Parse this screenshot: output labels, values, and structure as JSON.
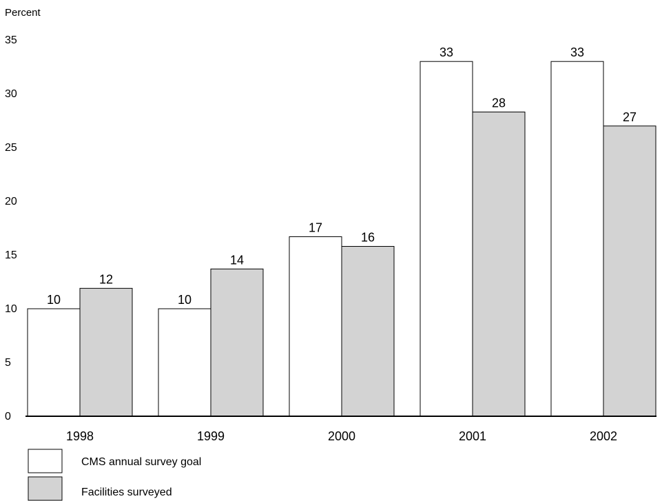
{
  "chart_data": {
    "type": "bar",
    "ylabel": "Percent",
    "categories": [
      "1998",
      "1999",
      "2000",
      "2001",
      "2002"
    ],
    "series": [
      {
        "name": "CMS annual survey goal",
        "values": [
          10,
          10,
          16.7,
          33,
          33
        ],
        "labels": [
          "10",
          "10",
          "17",
          "33",
          "33"
        ],
        "color": "#ffffff"
      },
      {
        "name": "Facilities surveyed",
        "values": [
          11.9,
          13.7,
          15.8,
          28.3,
          27
        ],
        "labels": [
          "12",
          "14",
          "16",
          "28",
          "27"
        ],
        "color": "#d3d3d3"
      }
    ],
    "yticks": [
      "0",
      "5",
      "10",
      "15",
      "20",
      "25",
      "30",
      "35"
    ],
    "ylim": [
      0,
      35
    ],
    "grid": false,
    "legend_position": "bottom-left"
  }
}
